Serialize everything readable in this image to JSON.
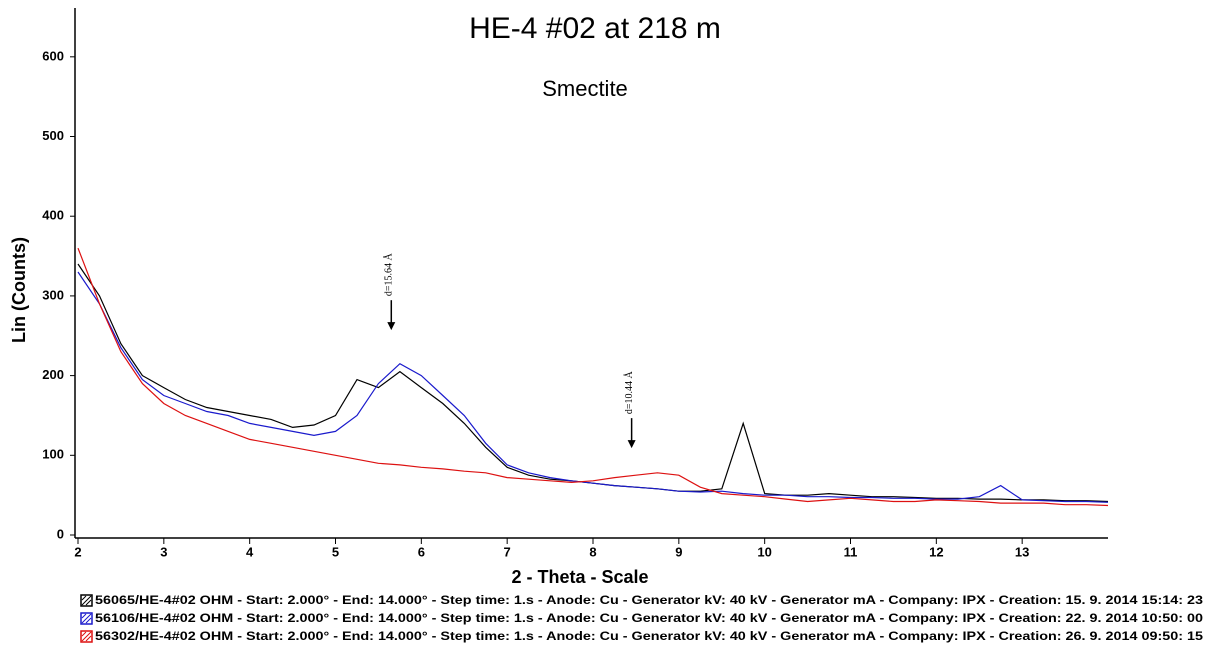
{
  "chart_data": {
    "type": "line",
    "title": "HE-4 #02 at 218 m",
    "subtitle": "Smectite",
    "x_label": "2 - Theta - Scale",
    "y_label": "Lin (Counts)",
    "xlim": [
      2,
      14
    ],
    "ylim": [
      0,
      660
    ],
    "xticks": [
      2,
      3,
      4,
      5,
      6,
      7,
      8,
      9,
      10,
      11,
      12,
      13
    ],
    "yticks": [
      0,
      100,
      200,
      300,
      400,
      500,
      600
    ],
    "grid": false,
    "legend": "bottom",
    "x": [
      2,
      2.25,
      2.5,
      2.75,
      3,
      3.25,
      3.5,
      3.75,
      4,
      4.25,
      4.5,
      4.75,
      5,
      5.25,
      5.5,
      5.75,
      6,
      6.25,
      6.5,
      6.75,
      7,
      7.25,
      7.5,
      7.75,
      8,
      8.25,
      8.5,
      8.75,
      9,
      9.25,
      9.5,
      9.75,
      10,
      10.25,
      10.5,
      10.75,
      11,
      11.25,
      11.5,
      11.75,
      12,
      12.25,
      12.5,
      12.75,
      13,
      13.25,
      13.5,
      13.75,
      14
    ],
    "series": [
      {
        "name": "56065/HE-4#02 OHM - Start: 2.000° - End: 14.000° - Step time: 1.s - Anode: Cu - Generator kV: 40 kV - Generator mA - Company: IPX - Creation: 15. 9. 2014 15:14: 23",
        "color": "#000000",
        "values": [
          340,
          300,
          240,
          200,
          185,
          170,
          160,
          155,
          150,
          145,
          135,
          138,
          150,
          195,
          185,
          205,
          185,
          165,
          140,
          110,
          85,
          75,
          70,
          68,
          65,
          62,
          60,
          58,
          55,
          55,
          58,
          140,
          52,
          50,
          50,
          52,
          50,
          48,
          48,
          47,
          46,
          46,
          45,
          45,
          44,
          44,
          43,
          43,
          42
        ]
      },
      {
        "name": "56106/HE-4#02 OHM - Start: 2.000° - End: 14.000° - Step time: 1.s - Anode: Cu - Generator kV: 40 kV - Generator mA - Company: IPX - Creation: 22. 9. 2014 10:50: 00",
        "color": "#1a1acc",
        "values": [
          330,
          290,
          235,
          195,
          175,
          165,
          155,
          150,
          140,
          135,
          130,
          125,
          130,
          150,
          190,
          215,
          200,
          175,
          150,
          115,
          88,
          78,
          72,
          68,
          65,
          62,
          60,
          58,
          55,
          54,
          55,
          52,
          50,
          50,
          48,
          48,
          47,
          47,
          46,
          46,
          45,
          45,
          48,
          62,
          44,
          43,
          42,
          42,
          41
        ]
      },
      {
        "name": "56302/HE-4#02 OHM - Start: 2.000° - End: 14.000° - Step time: 1.s - Anode: Cu - Generator kV: 40 kV - Generator mA - Company: IPX - Creation: 26. 9. 2014 09:50: 15",
        "color": "#dd1111",
        "values": [
          360,
          290,
          230,
          190,
          165,
          150,
          140,
          130,
          120,
          115,
          110,
          105,
          100,
          95,
          90,
          88,
          85,
          83,
          80,
          78,
          72,
          70,
          68,
          66,
          68,
          72,
          75,
          78,
          75,
          60,
          52,
          50,
          48,
          45,
          42,
          44,
          46,
          44,
          42,
          42,
          44,
          43,
          42,
          40,
          40,
          40,
          38,
          38,
          37
        ]
      }
    ],
    "annotations": [
      {
        "text": "d=15.64 Å",
        "x": 5.65,
        "y": 257
      },
      {
        "text": "d=10.44 Å",
        "x": 8.45,
        "y": 109
      }
    ]
  }
}
